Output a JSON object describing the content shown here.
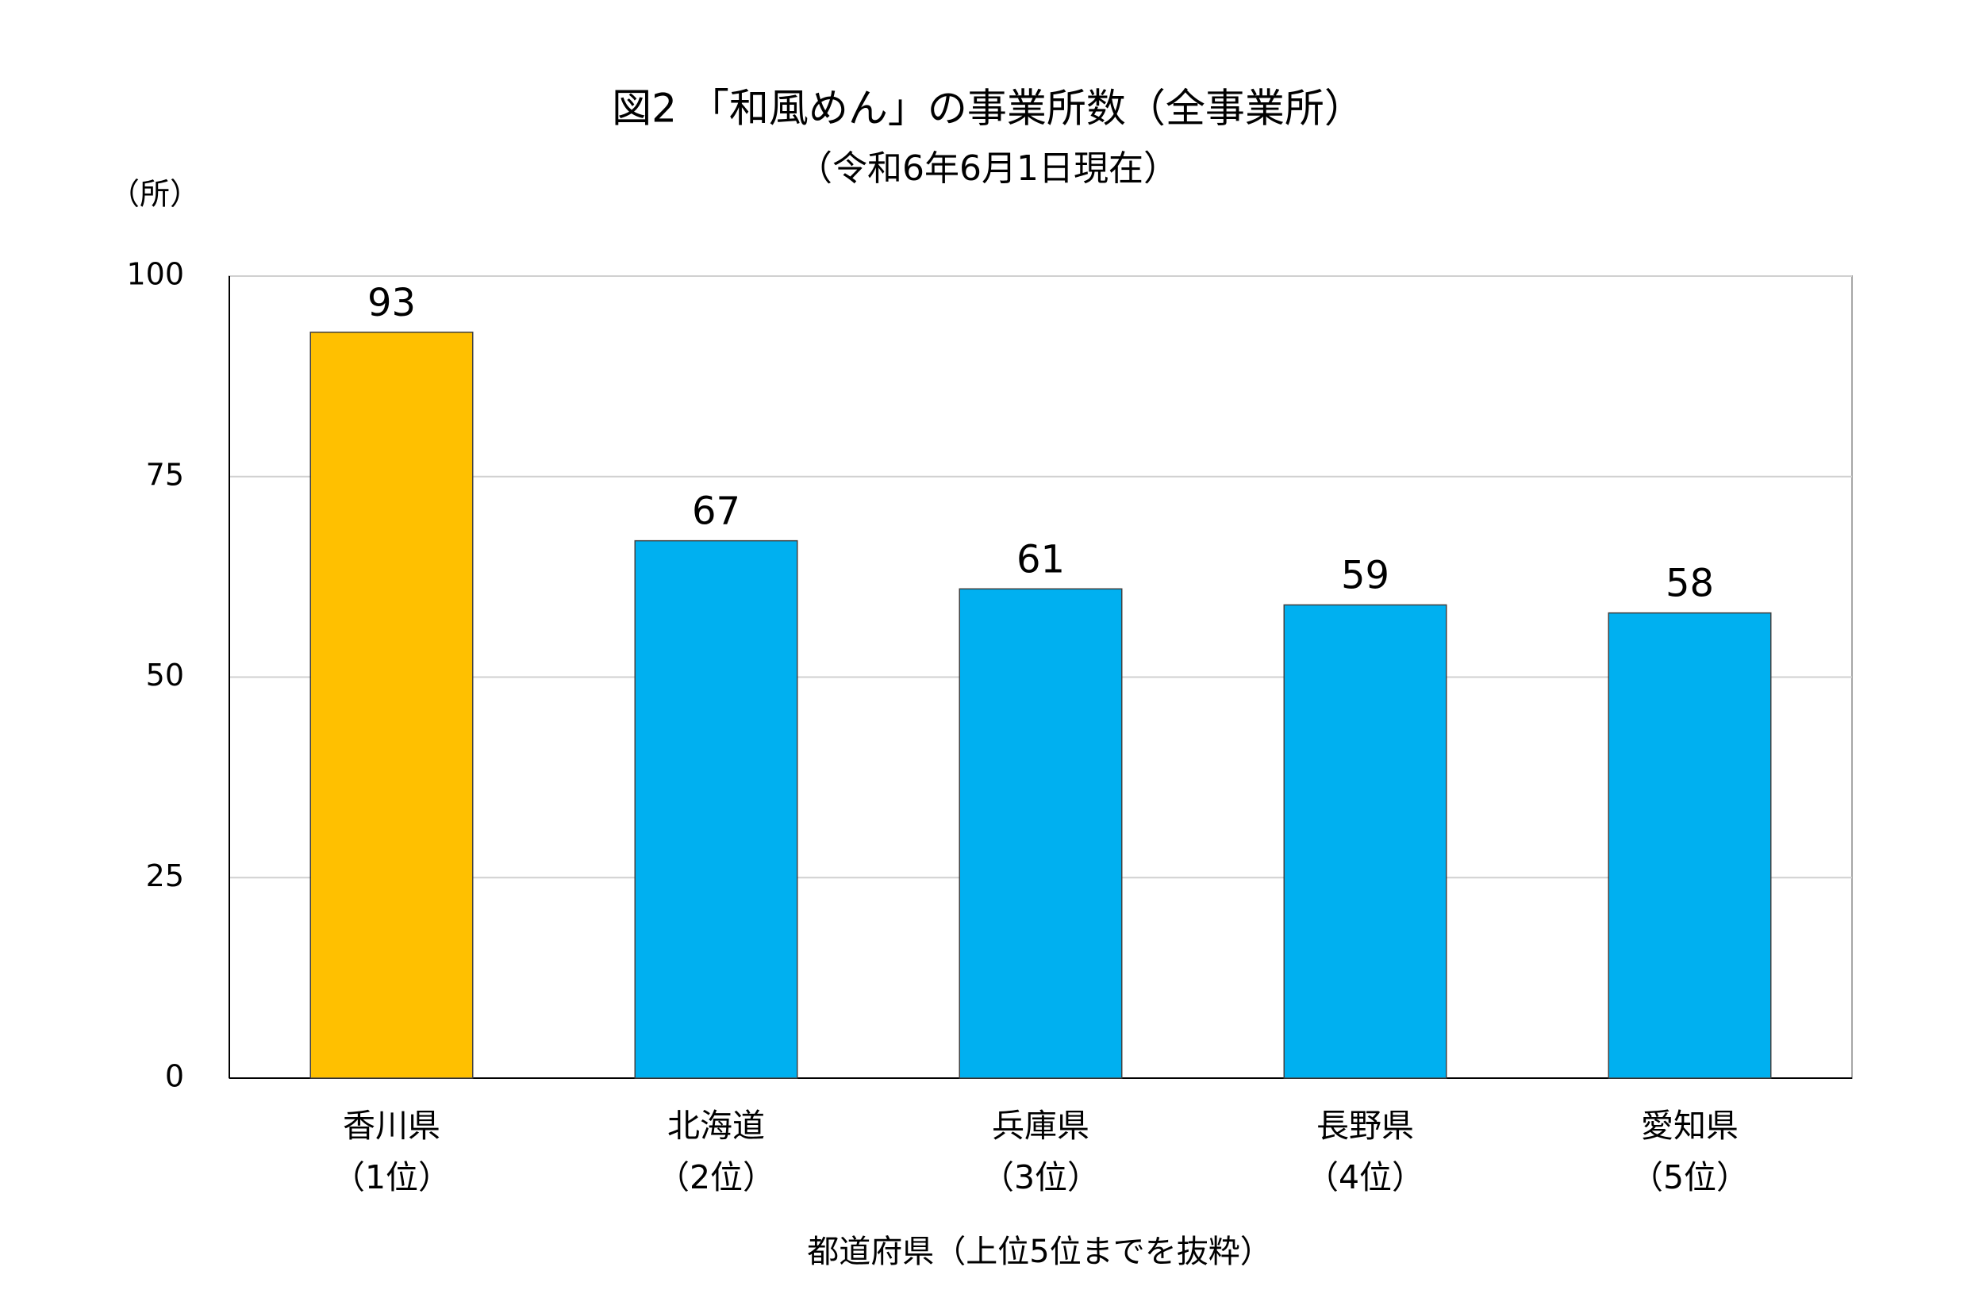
{
  "chart_data": {
    "type": "bar",
    "title": "図2 「和風めん」の事業所数（全事業所）",
    "subtitle": "（令和6年6月1日現在）",
    "y_label": "（所）",
    "x_label": "都道府県（上位5位までを抜粋）",
    "categories": [
      [
        "香川県",
        "（1位）"
      ],
      [
        "北海道",
        "（2位）"
      ],
      [
        "兵庫県",
        "（3位）"
      ],
      [
        "長野県",
        "（4位）"
      ],
      [
        "愛知県",
        "（5位）"
      ]
    ],
    "values": [
      93,
      67,
      61,
      59,
      58
    ],
    "colors": [
      "#ffc000",
      "#00b0f0",
      "#00b0f0",
      "#00b0f0",
      "#00b0f0"
    ],
    "ylim": [
      0,
      100
    ],
    "yticks": [
      0,
      25,
      50,
      75,
      100
    ],
    "grid": true
  }
}
